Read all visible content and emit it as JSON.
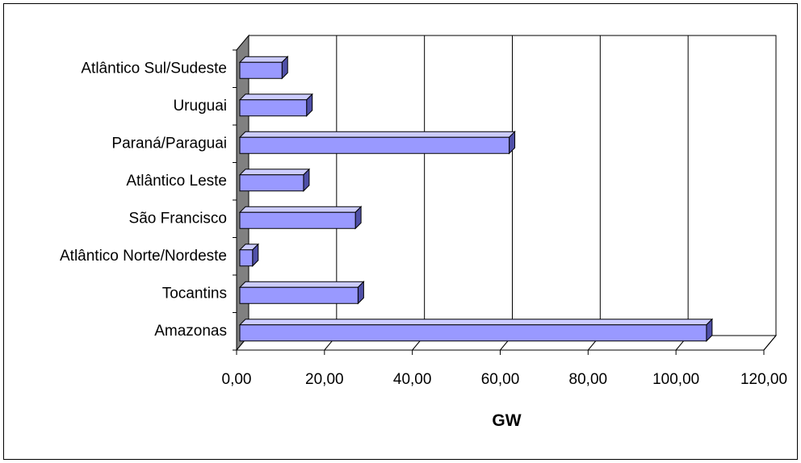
{
  "chart_data": {
    "type": "bar",
    "orientation": "horizontal",
    "style": "3d",
    "categories": [
      "Amazonas",
      "Tocantins",
      "Atlântico Norte/Nordeste",
      "São Francisco",
      "Atlântico Leste",
      "Paraná/Paraguai",
      "Uruguai",
      "Atlântico Sul/Sudeste"
    ],
    "values": [
      106.2,
      26.9,
      2.9,
      26.3,
      14.5,
      61.3,
      15.2,
      9.6
    ],
    "xlabel": "GW",
    "ylabel": "",
    "xlim": [
      0,
      120
    ],
    "xticks": [
      "0,00",
      "20,00",
      "40,00",
      "60,00",
      "80,00",
      "100,00",
      "120,00"
    ],
    "grid": "vertical",
    "legend": "none",
    "colors": {
      "bar_front": "#9999ff",
      "bar_top": "#ccccff",
      "bar_side": "#5050a8",
      "side_wall": "#808080",
      "gridline": "#000000"
    }
  }
}
